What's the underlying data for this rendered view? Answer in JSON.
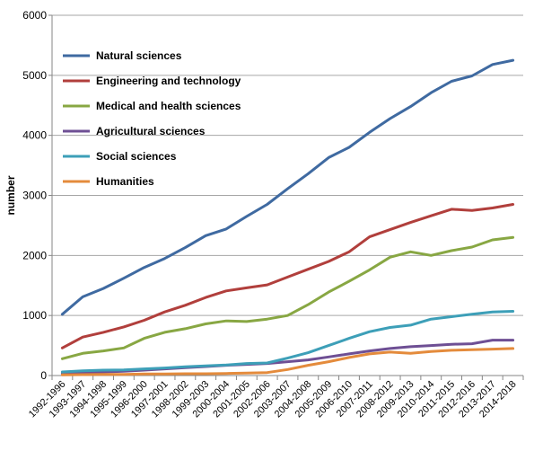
{
  "chart_data": {
    "type": "line",
    "title": "",
    "xlabel": "",
    "ylabel": "number",
    "ylim": [
      0,
      6000
    ],
    "yticks": [
      0,
      1000,
      2000,
      3000,
      4000,
      5000,
      6000
    ],
    "grid": "horizontal",
    "legend_position": "top-left",
    "categories": [
      "1992-1996",
      "1993-1997",
      "1994-1998",
      "1995-1999",
      "1996-2000",
      "1997-2001",
      "1998-2002",
      "1999-2003",
      "2000-2004",
      "2001-2005",
      "2002-2006",
      "2003-2007",
      "2004-2008",
      "2005-2009",
      "2006-2010",
      "2007-2011",
      "2008-2012",
      "2009-2013",
      "2010-2014",
      "2011-2015",
      "2012-2016",
      "2013-2017",
      "2014-2018"
    ],
    "series": [
      {
        "name": "Natural sciences",
        "color": "#3f6aa1",
        "values": [
          1020,
          1310,
          1450,
          1620,
          1800,
          1950,
          2130,
          2330,
          2440,
          2650,
          2850,
          3110,
          3360,
          3630,
          3800,
          4050,
          4280,
          4480,
          4710,
          4900,
          4990,
          5180,
          5250
        ]
      },
      {
        "name": "Engineering and technology",
        "color": "#b13f3c",
        "values": [
          460,
          640,
          720,
          810,
          920,
          1060,
          1170,
          1300,
          1410,
          1460,
          1510,
          1640,
          1770,
          1900,
          2060,
          2310,
          2430,
          2550,
          2660,
          2770,
          2750,
          2790,
          2850
        ]
      },
      {
        "name": "Medical and health sciences",
        "color": "#88a743",
        "values": [
          280,
          370,
          410,
          460,
          620,
          720,
          780,
          860,
          910,
          900,
          940,
          1000,
          1180,
          1390,
          1570,
          1760,
          1970,
          2060,
          2000,
          2080,
          2140,
          2260,
          2300
        ]
      },
      {
        "name": "Agricultural sciences",
        "color": "#6e4f94",
        "values": [
          30,
          50,
          60,
          70,
          90,
          110,
          130,
          150,
          170,
          185,
          200,
          230,
          260,
          310,
          360,
          410,
          450,
          480,
          500,
          520,
          530,
          590,
          590
        ]
      },
      {
        "name": "Social sciences",
        "color": "#3d9fb8",
        "values": [
          60,
          80,
          90,
          95,
          110,
          125,
          145,
          160,
          175,
          200,
          210,
          290,
          380,
          500,
          620,
          730,
          800,
          840,
          940,
          980,
          1020,
          1060,
          1070
        ]
      },
      {
        "name": "Humanities",
        "color": "#e48b3c",
        "values": [
          10,
          15,
          20,
          20,
          25,
          25,
          30,
          30,
          35,
          40,
          50,
          100,
          170,
          230,
          300,
          360,
          390,
          370,
          400,
          420,
          430,
          440,
          450
        ]
      }
    ]
  }
}
